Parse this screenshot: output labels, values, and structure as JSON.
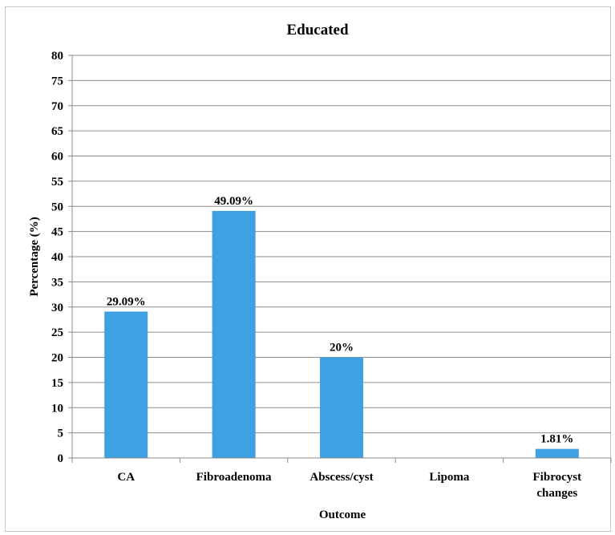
{
  "chart_data": {
    "type": "bar",
    "title": "Educated",
    "xlabel": "Outcome",
    "ylabel": "Percentage (%)",
    "ylim": [
      0,
      80
    ],
    "ytick_step": 5,
    "grid": true,
    "legend": "none",
    "bar_color": "#3fa0e4",
    "categories": [
      [
        "CA"
      ],
      [
        "Fibroadenoma"
      ],
      [
        "Abscess/cyst"
      ],
      [
        "Lipoma"
      ],
      [
        "Fibrocyst",
        "changes"
      ]
    ],
    "values": [
      29.09,
      49.09,
      20,
      0,
      1.81
    ],
    "data_labels": [
      "29.09%",
      "49.09%",
      "20%",
      "",
      "1.81%"
    ]
  }
}
